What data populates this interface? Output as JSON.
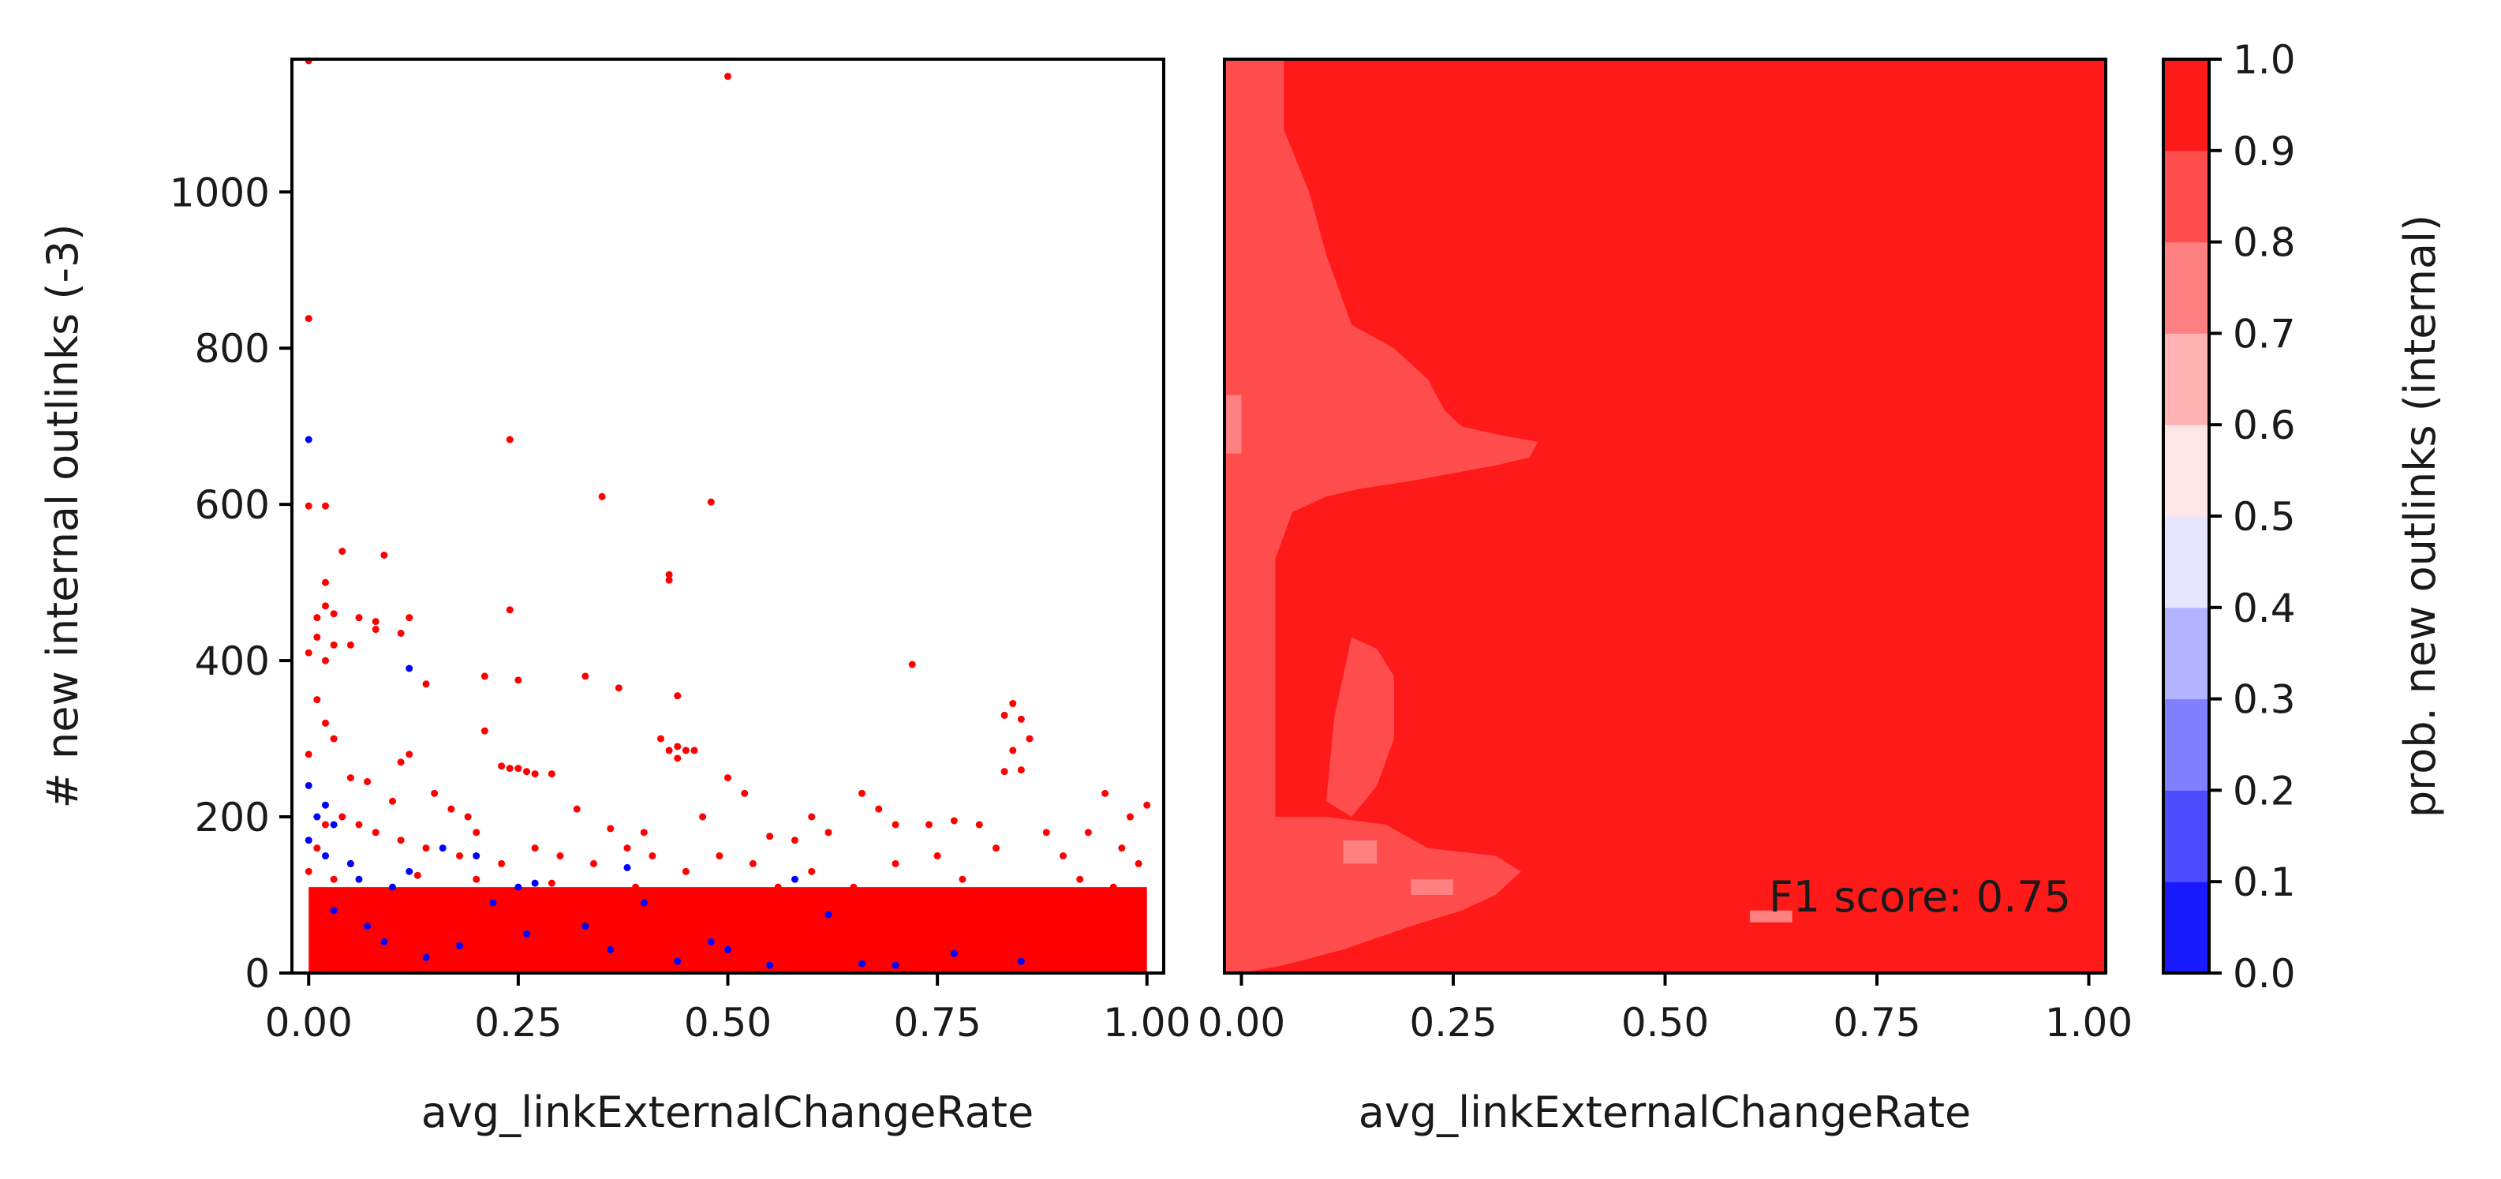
{
  "chart_data": [
    {
      "type": "scatter",
      "xlabel": "avg_linkExternalChangeRate",
      "ylabel": "# new internal outlinks (-3)",
      "xlim": [
        -0.02,
        1.02
      ],
      "ylim": [
        0,
        1170
      ],
      "xticks": [
        0.0,
        0.25,
        0.5,
        0.75,
        1.0
      ],
      "xtick_labels": [
        "0.00",
        "0.25",
        "0.50",
        "0.75",
        "1.00"
      ],
      "yticks": [
        0,
        200,
        400,
        600,
        800,
        1000
      ],
      "ytick_labels": [
        "0",
        "200",
        "400",
        "600",
        "800",
        "1000"
      ],
      "grid": false,
      "series": [
        {
          "color": "#ff0000",
          "points": [
            [
              0.0,
              1168
            ],
            [
              0.0,
              838
            ],
            [
              0.5,
              1148
            ],
            [
              0.0,
              598
            ],
            [
              0.02,
              598
            ],
            [
              0.24,
              683
            ],
            [
              0.35,
              610
            ],
            [
              0.48,
              603
            ],
            [
              0.43,
              510
            ],
            [
              0.43,
              503
            ],
            [
              0.02,
              500
            ],
            [
              0.04,
              540
            ],
            [
              0.09,
              535
            ],
            [
              0.06,
              455
            ],
            [
              0.08,
              450
            ],
            [
              0.12,
              455
            ],
            [
              0.02,
              470
            ],
            [
              0.01,
              455
            ],
            [
              0.03,
              460
            ],
            [
              0.24,
              465
            ],
            [
              0.01,
              430
            ],
            [
              0.03,
              420
            ],
            [
              0.0,
              410
            ],
            [
              0.02,
              400
            ],
            [
              0.05,
              420
            ],
            [
              0.08,
              440
            ],
            [
              0.11,
              435
            ],
            [
              0.44,
              355
            ],
            [
              0.33,
              380
            ],
            [
              0.37,
              365
            ],
            [
              0.72,
              395
            ],
            [
              0.21,
              380
            ],
            [
              0.25,
              375
            ],
            [
              0.14,
              370
            ],
            [
              0.84,
              345
            ],
            [
              0.85,
              325
            ],
            [
              0.83,
              330
            ],
            [
              0.86,
              300
            ],
            [
              0.84,
              285
            ],
            [
              0.85,
              260
            ],
            [
              0.83,
              258
            ],
            [
              0.42,
              300
            ],
            [
              0.43,
              285
            ],
            [
              0.44,
              290
            ],
            [
              0.45,
              285
            ],
            [
              0.46,
              285
            ],
            [
              0.44,
              275
            ],
            [
              0.23,
              265
            ],
            [
              0.24,
              262
            ],
            [
              0.25,
              262
            ],
            [
              0.26,
              258
            ],
            [
              0.27,
              255
            ],
            [
              0.21,
              310
            ],
            [
              0.29,
              255
            ],
            [
              0.12,
              280
            ],
            [
              0.11,
              270
            ],
            [
              0.01,
              350
            ],
            [
              0.02,
              320
            ],
            [
              0.03,
              300
            ],
            [
              0.0,
              280
            ],
            [
              0.05,
              250
            ],
            [
              0.07,
              245
            ],
            [
              0.1,
              220
            ],
            [
              0.15,
              230
            ],
            [
              0.17,
              210
            ],
            [
              0.19,
              200
            ],
            [
              0.2,
              180
            ],
            [
              0.32,
              210
            ],
            [
              0.36,
              185
            ],
            [
              0.4,
              180
            ],
            [
              0.47,
              200
            ],
            [
              0.5,
              250
            ],
            [
              0.52,
              230
            ],
            [
              0.55,
              175
            ],
            [
              0.58,
              170
            ],
            [
              0.6,
              200
            ],
            [
              0.62,
              180
            ],
            [
              0.66,
              230
            ],
            [
              0.68,
              210
            ],
            [
              0.7,
              190
            ],
            [
              0.74,
              190
            ],
            [
              0.77,
              195
            ],
            [
              0.8,
              190
            ],
            [
              0.82,
              160
            ],
            [
              0.88,
              180
            ],
            [
              0.9,
              150
            ],
            [
              0.93,
              180
            ],
            [
              0.95,
              230
            ],
            [
              0.98,
              200
            ],
            [
              1.0,
              215
            ],
            [
              0.97,
              160
            ],
            [
              0.99,
              140
            ],
            [
              0.96,
              110
            ],
            [
              0.92,
              120
            ],
            [
              0.87,
              90
            ],
            [
              0.84,
              100
            ],
            [
              0.86,
              80
            ],
            [
              0.78,
              120
            ],
            [
              0.75,
              150
            ],
            [
              0.7,
              140
            ],
            [
              0.65,
              110
            ],
            [
              0.6,
              130
            ],
            [
              0.56,
              110
            ],
            [
              0.53,
              140
            ],
            [
              0.49,
              150
            ],
            [
              0.45,
              130
            ],
            [
              0.41,
              150
            ],
            [
              0.38,
              160
            ],
            [
              0.34,
              140
            ],
            [
              0.3,
              150
            ],
            [
              0.27,
              160
            ],
            [
              0.23,
              140
            ],
            [
              0.18,
              150
            ],
            [
              0.14,
              160
            ],
            [
              0.11,
              170
            ],
            [
              0.08,
              180
            ],
            [
              0.06,
              190
            ],
            [
              0.04,
              200
            ],
            [
              0.02,
              190
            ],
            [
              0.01,
              160
            ],
            [
              0.0,
              130
            ],
            [
              0.03,
              120
            ],
            [
              0.05,
              140
            ],
            [
              0.13,
              125
            ],
            [
              0.2,
              120
            ],
            [
              0.29,
              115
            ],
            [
              0.39,
              110
            ],
            [
              0.47,
              105
            ],
            [
              0.57,
              95
            ],
            [
              0.67,
              90
            ],
            [
              0.73,
              85
            ],
            [
              0.81,
              75
            ],
            [
              0.91,
              70
            ],
            [
              0.99,
              100
            ]
          ]
        },
        {
          "color": "#0000ff",
          "points": [
            [
              0.0,
              683
            ],
            [
              0.0,
              240
            ],
            [
              0.12,
              390
            ],
            [
              0.02,
              215
            ],
            [
              0.01,
              200
            ],
            [
              0.03,
              190
            ],
            [
              0.0,
              170
            ],
            [
              0.02,
              150
            ],
            [
              0.05,
              140
            ],
            [
              0.06,
              120
            ],
            [
              0.1,
              110
            ],
            [
              0.12,
              130
            ],
            [
              0.16,
              160
            ],
            [
              0.2,
              150
            ],
            [
              0.22,
              90
            ],
            [
              0.25,
              110
            ],
            [
              0.27,
              115
            ],
            [
              0.33,
              60
            ],
            [
              0.36,
              30
            ],
            [
              0.38,
              135
            ],
            [
              0.4,
              90
            ],
            [
              0.48,
              40
            ],
            [
              0.5,
              30
            ],
            [
              0.58,
              120
            ],
            [
              0.62,
              75
            ],
            [
              0.7,
              10
            ],
            [
              0.77,
              25
            ],
            [
              0.85,
              15
            ],
            [
              0.03,
              80
            ],
            [
              0.07,
              60
            ],
            [
              0.09,
              40
            ],
            [
              0.14,
              20
            ],
            [
              0.18,
              35
            ],
            [
              0.26,
              50
            ],
            [
              0.44,
              15
            ],
            [
              0.55,
              10
            ],
            [
              0.66,
              12
            ]
          ]
        }
      ]
    },
    {
      "type": "heatmap",
      "xlabel": "avg_linkExternalChangeRate",
      "ylabel": "",
      "xlim": [
        -0.02,
        1.02
      ],
      "ylim": [
        0,
        1170
      ],
      "xticks": [
        0.0,
        0.25,
        0.5,
        0.75,
        1.0
      ],
      "xtick_labels": [
        "0.00",
        "0.25",
        "0.50",
        "0.75",
        "1.00"
      ],
      "annotation": "F1 score: 0.75",
      "base_level_color": "#ff1a1a",
      "regions": [
        {
          "level": "0.8-0.9",
          "color": "#ff4d4d",
          "polygon": [
            [
              0.0,
              1170
            ],
            [
              0.05,
              1170
            ],
            [
              0.05,
              1080
            ],
            [
              0.08,
              1000
            ],
            [
              0.1,
              920
            ],
            [
              0.13,
              830
            ],
            [
              0.18,
              800
            ],
            [
              0.22,
              760
            ],
            [
              0.24,
              720
            ],
            [
              0.26,
              700
            ],
            [
              0.3,
              690
            ],
            [
              0.35,
              680
            ],
            [
              0.34,
              660
            ],
            [
              0.3,
              650
            ],
            [
              0.25,
              640
            ],
            [
              0.2,
              630
            ],
            [
              0.14,
              620
            ],
            [
              0.1,
              610
            ],
            [
              0.06,
              590
            ],
            [
              0.04,
              530
            ],
            [
              0.04,
              400
            ],
            [
              0.04,
              250
            ],
            [
              0.04,
              140
            ],
            [
              0.0,
              100
            ],
            [
              0.0,
              0
            ],
            [
              -0.02,
              0
            ],
            [
              -0.02,
              1170
            ]
          ]
        },
        {
          "level": "0.8-0.9",
          "color": "#ff4d4d",
          "polygon": [
            [
              0.1,
              220
            ],
            [
              0.11,
              330
            ],
            [
              0.13,
              430
            ],
            [
              0.16,
              415
            ],
            [
              0.18,
              380
            ],
            [
              0.18,
              300
            ],
            [
              0.16,
              240
            ],
            [
              0.13,
              200
            ]
          ]
        },
        {
          "level": "0.8-0.9",
          "color": "#ff4d4d",
          "polygon": [
            [
              0.0,
              200
            ],
            [
              0.1,
              200
            ],
            [
              0.17,
              190
            ],
            [
              0.22,
              160
            ],
            [
              0.3,
              150
            ],
            [
              0.33,
              130
            ],
            [
              0.3,
              100
            ],
            [
              0.26,
              80
            ],
            [
              0.2,
              60
            ],
            [
              0.12,
              30
            ],
            [
              0.05,
              10
            ],
            [
              0.0,
              0
            ]
          ]
        },
        {
          "level": "0.7-0.8",
          "color": "#ff8080",
          "polygon": [
            [
              -0.02,
              740
            ],
            [
              0.0,
              740
            ],
            [
              0.0,
              665
            ],
            [
              -0.02,
              665
            ]
          ]
        },
        {
          "level": "0.7-0.8",
          "color": "#ff8080",
          "polygon": [
            [
              0.12,
              170
            ],
            [
              0.16,
              170
            ],
            [
              0.16,
              140
            ],
            [
              0.12,
              140
            ]
          ]
        },
        {
          "level": "0.7-0.8",
          "color": "#ff8080",
          "polygon": [
            [
              0.2,
              120
            ],
            [
              0.25,
              120
            ],
            [
              0.25,
              100
            ],
            [
              0.2,
              100
            ]
          ]
        },
        {
          "level": "0.7-0.8",
          "color": "#ff8080",
          "polygon": [
            [
              0.6,
              80
            ],
            [
              0.65,
              80
            ],
            [
              0.65,
              65
            ],
            [
              0.6,
              65
            ]
          ]
        }
      ]
    }
  ],
  "colorbar": {
    "label": "prob. new outlinks (internal)",
    "ticks": [
      "0.0",
      "0.1",
      "0.2",
      "0.3",
      "0.4",
      "0.5",
      "0.6",
      "0.7",
      "0.8",
      "0.9",
      "1.0"
    ],
    "level_colors": [
      "#1a1aff",
      "#4d4dff",
      "#8080ff",
      "#b3b3ff",
      "#e6e6ff",
      "#ffe6e6",
      "#ffb3b3",
      "#ff8080",
      "#ff4d4d",
      "#ff1a1a"
    ]
  }
}
